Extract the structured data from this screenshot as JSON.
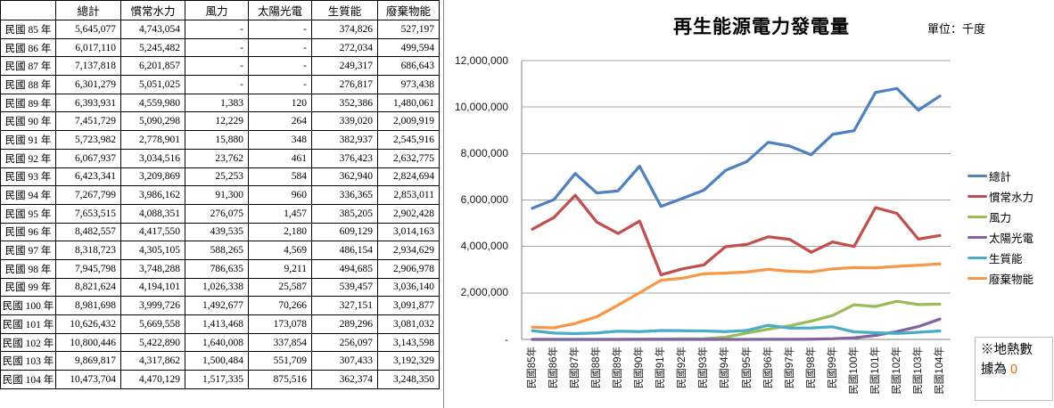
{
  "table": {
    "columns": [
      "",
      "總計",
      "慣常水力",
      "風力",
      "太陽光電",
      "生質能",
      "廢棄物能"
    ],
    "rows": [
      {
        "year": "民國 85 年",
        "values": [
          "5,645,077",
          "4,743,054",
          "-",
          "-",
          "374,826",
          "527,197"
        ]
      },
      {
        "year": "民國 86 年",
        "values": [
          "6,017,110",
          "5,245,482",
          "-",
          "-",
          "272,034",
          "499,594"
        ]
      },
      {
        "year": "民國 87 年",
        "values": [
          "7,137,818",
          "6,201,857",
          "-",
          "-",
          "249,317",
          "686,643"
        ]
      },
      {
        "year": "民國 88 年",
        "values": [
          "6,301,279",
          "5,051,025",
          "-",
          "-",
          "276,817",
          "973,438"
        ]
      },
      {
        "year": "民國 89 年",
        "values": [
          "6,393,931",
          "4,559,980",
          "1,383",
          "120",
          "352,386",
          "1,480,061"
        ]
      },
      {
        "year": "民國 90 年",
        "values": [
          "7,451,729",
          "5,090,298",
          "12,229",
          "264",
          "339,020",
          "2,009,919"
        ]
      },
      {
        "year": "民國 91 年",
        "values": [
          "5,723,982",
          "2,778,901",
          "15,880",
          "348",
          "382,937",
          "2,545,916"
        ]
      },
      {
        "year": "民國 92 年",
        "values": [
          "6,067,937",
          "3,034,516",
          "23,762",
          "461",
          "376,423",
          "2,632,775"
        ]
      },
      {
        "year": "民國 93 年",
        "values": [
          "6,423,341",
          "3,209,869",
          "25,253",
          "584",
          "362,940",
          "2,824,694"
        ]
      },
      {
        "year": "民國 94 年",
        "values": [
          "7,267,799",
          "3,986,162",
          "91,300",
          "960",
          "336,365",
          "2,853,011"
        ]
      },
      {
        "year": "民國 95 年",
        "values": [
          "7,653,515",
          "4,088,351",
          "276,075",
          "1,457",
          "385,205",
          "2,902,428"
        ]
      },
      {
        "year": "民國 96 年",
        "values": [
          "8,482,557",
          "4,417,550",
          "439,535",
          "2,180",
          "609,129",
          "3,014,163"
        ]
      },
      {
        "year": "民國 97 年",
        "values": [
          "8,318,723",
          "4,305,105",
          "588,265",
          "4,569",
          "486,154",
          "2,934,629"
        ]
      },
      {
        "year": "民國 98 年",
        "values": [
          "7,945,798",
          "3,748,288",
          "786,635",
          "9,211",
          "494,685",
          "2,906,978"
        ]
      },
      {
        "year": "民國 99 年",
        "values": [
          "8,821,624",
          "4,194,101",
          "1,026,338",
          "25,587",
          "539,457",
          "3,036,140"
        ]
      },
      {
        "year": "民國 100 年",
        "values": [
          "8,981,698",
          "3,999,726",
          "1,492,677",
          "70,266",
          "327,151",
          "3,091,877"
        ]
      },
      {
        "year": "民國 101 年",
        "values": [
          "10,626,432",
          "5,669,558",
          "1,413,468",
          "173,078",
          "289,296",
          "3,081,032"
        ]
      },
      {
        "year": "民國 102 年",
        "values": [
          "10,800,446",
          "5,422,890",
          "1,640,008",
          "337,854",
          "256,097",
          "3,143,598"
        ]
      },
      {
        "year": "民國 103 年",
        "values": [
          "9,869,817",
          "4,317,862",
          "1,500,484",
          "551,709",
          "307,433",
          "3,192,329"
        ]
      },
      {
        "year": "民國 104 年",
        "values": [
          "10,473,704",
          "4,470,129",
          "1,517,335",
          "875,516",
          "362,374",
          "3,248,350"
        ]
      }
    ]
  },
  "chart": {
    "title": "再生能源電力發電量",
    "unit_label": "單位：千度",
    "note": {
      "line1": "※地熱數",
      "line2": "據為 ",
      "value": "0"
    }
  },
  "chart_data": {
    "type": "line",
    "title": "再生能源電力發電量",
    "unit": "千度",
    "categories": [
      "民國85年",
      "民國86年",
      "民國87年",
      "民國88年",
      "民國89年",
      "民國90年",
      "民國91年",
      "民國92年",
      "民國93年",
      "民國94年",
      "民國95年",
      "民國96年",
      "民國97年",
      "民國98年",
      "民國99年",
      "民國100年",
      "民國101年",
      "民國102年",
      "民國103年",
      "民國104年"
    ],
    "series": [
      {
        "name": "總計",
        "color": "#4F81BD",
        "values": [
          5645077,
          6017110,
          7137818,
          6301279,
          6393931,
          7451729,
          5723982,
          6067937,
          6423341,
          7267799,
          7653515,
          8482557,
          8318723,
          7945798,
          8821624,
          8981698,
          10626432,
          10800446,
          9869817,
          10473704
        ]
      },
      {
        "name": "慣常水力",
        "color": "#C0504D",
        "values": [
          4743054,
          5245482,
          6201857,
          5051025,
          4559980,
          5090298,
          2778901,
          3034516,
          3209869,
          3986162,
          4088351,
          4417550,
          4305105,
          3748288,
          4194101,
          3999726,
          5669558,
          5422890,
          4317862,
          4470129
        ]
      },
      {
        "name": "風力",
        "color": "#9BBB59",
        "values": [
          0,
          0,
          0,
          0,
          1383,
          12229,
          15880,
          23762,
          25253,
          91300,
          276075,
          439535,
          588265,
          786635,
          1026338,
          1492677,
          1413468,
          1640008,
          1500484,
          1517335
        ]
      },
      {
        "name": "太陽光電",
        "color": "#8064A2",
        "values": [
          0,
          0,
          0,
          0,
          120,
          264,
          348,
          461,
          584,
          960,
          1457,
          2180,
          4569,
          9211,
          25587,
          70266,
          173078,
          337854,
          551709,
          875516
        ]
      },
      {
        "name": "生質能",
        "color": "#4BACC6",
        "values": [
          374826,
          272034,
          249317,
          276817,
          352386,
          339020,
          382937,
          376423,
          362940,
          336365,
          385205,
          609129,
          486154,
          494685,
          539457,
          327151,
          289296,
          256097,
          307433,
          362374
        ]
      },
      {
        "name": "廢棄物能",
        "color": "#F79646",
        "values": [
          527197,
          499594,
          686643,
          973438,
          1480061,
          2009919,
          2545916,
          2632775,
          2824694,
          2853011,
          2902428,
          3014163,
          2934629,
          2906978,
          3036140,
          3091877,
          3081032,
          3143598,
          3192329,
          3248350
        ]
      }
    ],
    "y_ticks": [
      "12,000,000",
      "10,000,000",
      "8,000,000",
      "6,000,000",
      "4,000,000",
      "2,000,000",
      "-"
    ],
    "ylim": [
      0,
      12000000
    ],
    "grid": true,
    "legend_position": "right",
    "annotation": "※地熱數據為 0"
  }
}
